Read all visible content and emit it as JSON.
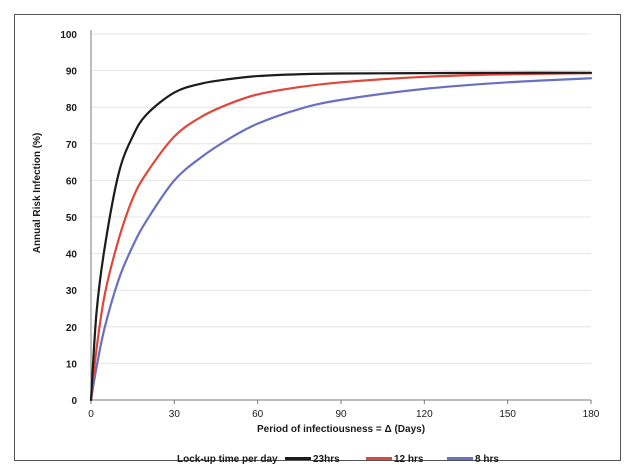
{
  "chart_data": {
    "type": "line",
    "title": "",
    "xlabel": "Period of infectiousness = Δ (Days)",
    "ylabel": "Annual Risk Infection (%)",
    "xlim": [
      0,
      180
    ],
    "ylim": [
      0,
      100
    ],
    "xticks": [
      0,
      30,
      60,
      90,
      120,
      150,
      180
    ],
    "yticks": [
      0,
      10,
      20,
      30,
      40,
      50,
      60,
      70,
      80,
      90,
      100
    ],
    "grid": "horizontal",
    "legend_title": "Lock-up time per day",
    "legend_position": "bottom",
    "x": [
      0,
      2,
      5,
      10,
      15,
      20,
      30,
      40,
      50,
      60,
      75,
      90,
      120,
      150,
      180
    ],
    "series": [
      {
        "name": "23hrs",
        "color": "#1c1c1c",
        "values": [
          0,
          24,
          42,
          62,
          72,
          78,
          84,
          86.5,
          87.7,
          88.5,
          89,
          89.2,
          89.3,
          89.4,
          89.4
        ]
      },
      {
        "name": "12 hrs",
        "color": "#e0473a",
        "values": [
          0,
          14,
          29,
          44,
          55,
          62,
          72,
          77.5,
          81,
          83.5,
          85.5,
          86.8,
          88.3,
          89,
          89.3
        ]
      },
      {
        "name": "8 hrs",
        "color": "#6a6fc2",
        "values": [
          0,
          9,
          20,
          33,
          42,
          49,
          60,
          66.5,
          71.5,
          75.5,
          79.5,
          82,
          85,
          86.8,
          87.9
        ]
      }
    ]
  }
}
